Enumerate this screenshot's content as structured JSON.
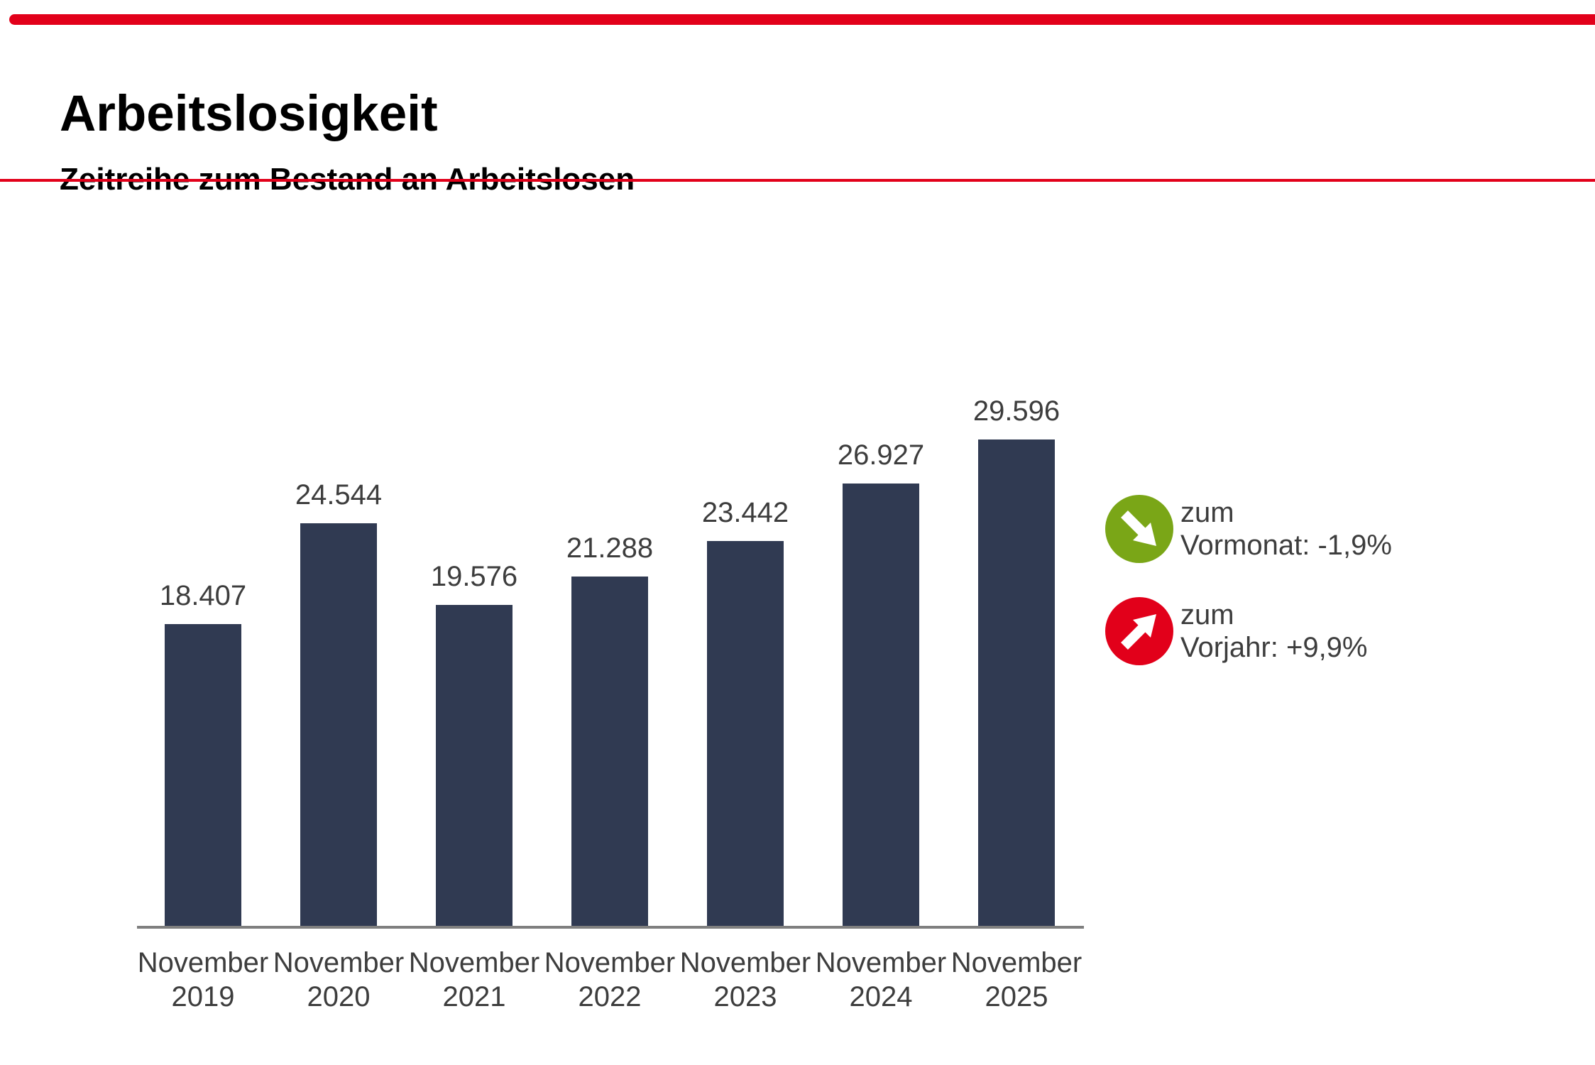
{
  "header": {
    "title": "Arbeitslosigkeit",
    "subtitle": "Zeitreihe zum Bestand an Arbeitslosen"
  },
  "chart_data": {
    "type": "bar",
    "title": "Zeitreihe zum Bestand an Arbeitslosen",
    "categories": [
      "November 2019",
      "November 2020",
      "November 2021",
      "November 2022",
      "November 2023",
      "November 2024",
      "November 2025"
    ],
    "values": [
      18407,
      24544,
      19576,
      21288,
      23442,
      26927,
      29596
    ],
    "value_labels": [
      "18.407",
      "24.544",
      "19.576",
      "21.288",
      "23.442",
      "26.927",
      "29.596"
    ],
    "xlabel": "",
    "ylabel": "",
    "ylim": [
      0,
      30500
    ],
    "grid": false,
    "legend": false,
    "bar_color": "#303A52",
    "label_color": "#3D3D3D",
    "axis_color": "#7F7F7F"
  },
  "indicators": [
    {
      "icon": "arrow-down-right-icon",
      "circle_color": "#7AA617",
      "line1": "zum",
      "line2": "Vormonat: -1,9%"
    },
    {
      "icon": "arrow-up-right-icon",
      "circle_color": "#E2001A",
      "line1": "zum",
      "line2": "Vorjahr: +9,9%"
    }
  ],
  "colors": {
    "accent_red": "#E2001A",
    "indicator_green": "#7AA617",
    "bar_navy": "#303A52",
    "axis_gray": "#7F7F7F",
    "text_dark": "#3D3D3D"
  }
}
